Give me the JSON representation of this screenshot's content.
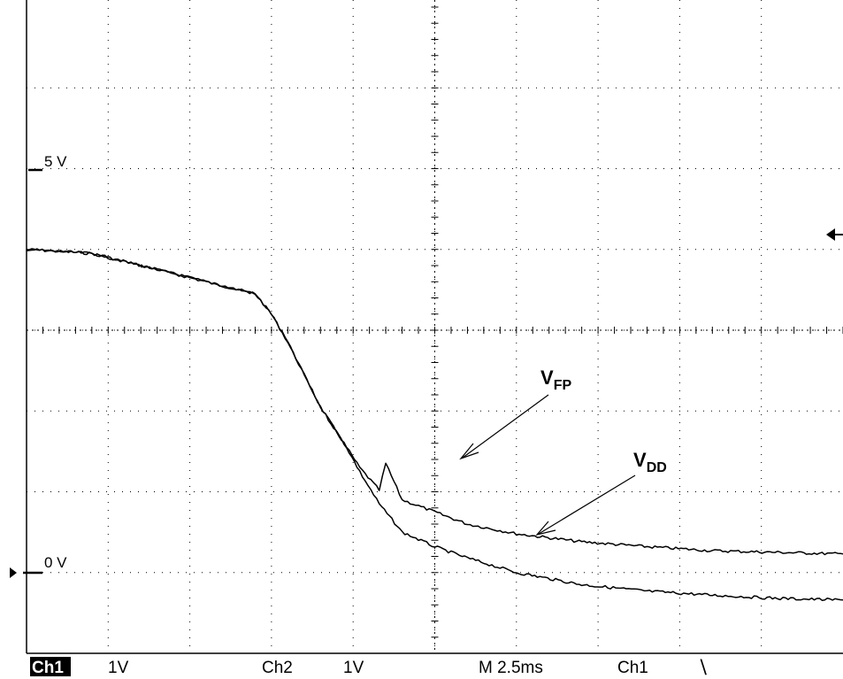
{
  "scope": {
    "markers": {
      "ref_5v": "5 V",
      "ref_0v": "0 V"
    },
    "annotations": {
      "vfp_main": "V",
      "vfp_sub": "FP",
      "vdd_main": "V",
      "vdd_sub": "DD"
    },
    "status": {
      "ch1": "Ch1",
      "ch1_scale": "1V",
      "ch2": "Ch2",
      "ch2_scale": "1V",
      "timebase": "M 2.5ms",
      "trigger_source": "Ch1",
      "trigger_slope": "⧹"
    }
  },
  "chart_data": {
    "type": "line",
    "title": "",
    "xlabel": "",
    "ylabel": "",
    "x_unit": "ms",
    "y_unit": "V",
    "grid": true,
    "xlim": [
      0,
      25
    ],
    "ylim": [
      -0.5,
      7.5
    ],
    "series": [
      {
        "name": "VFP",
        "x": [
          0,
          2,
          4,
          5,
          6,
          7,
          7.5,
          8,
          9,
          9.8,
          10.2,
          10.8,
          11,
          11.5,
          12.5,
          13.5,
          15,
          17,
          19,
          21,
          23,
          25
        ],
        "y": [
          4.5,
          4.45,
          4.25,
          4.15,
          4.05,
          3.95,
          3.7,
          3.35,
          2.55,
          2.05,
          1.8,
          1.52,
          1.85,
          1.4,
          1.25,
          1.1,
          0.98,
          0.88,
          0.82,
          0.77,
          0.75,
          0.73
        ]
      },
      {
        "name": "VDD",
        "x": [
          0,
          2,
          4,
          5,
          6,
          7,
          7.5,
          8,
          9,
          9.8,
          10.2,
          10.8,
          11.5,
          12.5,
          13.5,
          15,
          17,
          19,
          21,
          23,
          25
        ],
        "y": [
          4.5,
          4.45,
          4.25,
          4.15,
          4.05,
          3.95,
          3.7,
          3.35,
          2.55,
          2.05,
          1.75,
          1.35,
          1.0,
          0.82,
          0.68,
          0.5,
          0.35,
          0.27,
          0.22,
          0.18,
          0.16
        ]
      }
    ]
  }
}
